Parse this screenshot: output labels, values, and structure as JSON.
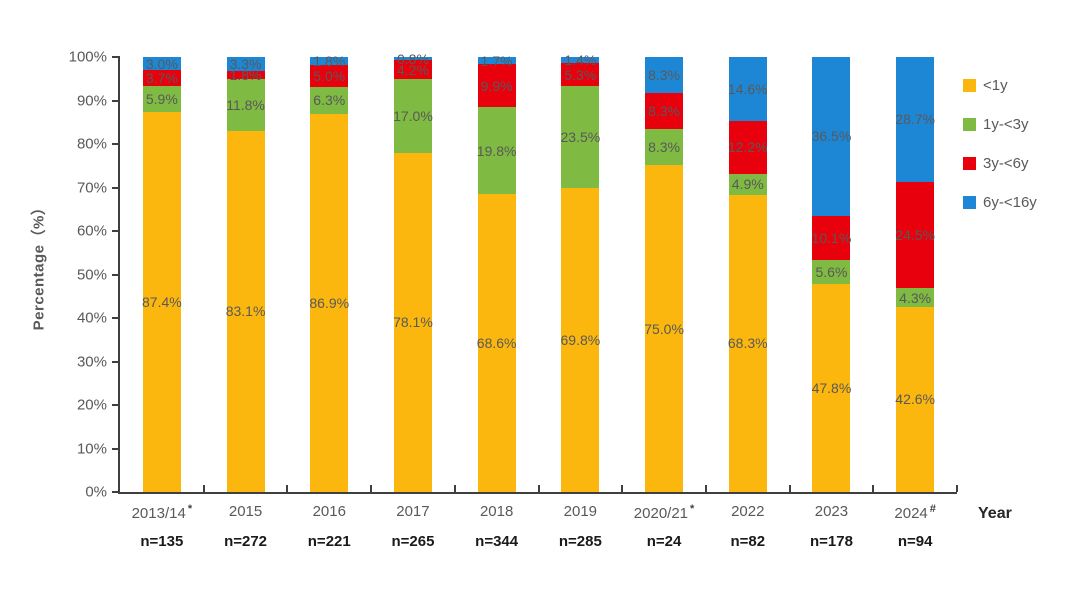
{
  "chart_data": {
    "type": "bar",
    "subtype": "stacked-percentage-column",
    "title": "",
    "xlabel": "Year",
    "ylabel": "Percentage（%）",
    "ylim": [
      0,
      100
    ],
    "grid": false,
    "legend_position": "right",
    "y_ticks": [
      "0%",
      "10%",
      "20%",
      "30%",
      "40%",
      "50%",
      "60%",
      "70%",
      "80%",
      "90%",
      "100%"
    ],
    "categories": [
      {
        "year": "2013/14",
        "marker": "*",
        "n": "n=135"
      },
      {
        "year": "2015",
        "marker": "",
        "n": "n=272"
      },
      {
        "year": "2016",
        "marker": "",
        "n": "n=221"
      },
      {
        "year": "2017",
        "marker": "",
        "n": "n=265"
      },
      {
        "year": "2018",
        "marker": "",
        "n": "n=344"
      },
      {
        "year": "2019",
        "marker": "",
        "n": "n=285"
      },
      {
        "year": "2020/21",
        "marker": "*",
        "n": "n=24"
      },
      {
        "year": "2022",
        "marker": "",
        "n": "n=82"
      },
      {
        "year": "2023",
        "marker": "",
        "n": "n=178"
      },
      {
        "year": "2024",
        "marker": "#",
        "n": "n=94"
      }
    ],
    "series": [
      {
        "name": "<1y",
        "color": "#FBB70D",
        "values": [
          87.4,
          83.1,
          86.9,
          78.1,
          68.6,
          69.8,
          75.0,
          68.3,
          47.8,
          42.6
        ]
      },
      {
        "name": "1y-<3y",
        "color": "#7FBA42",
        "values": [
          5.9,
          11.8,
          6.3,
          17.0,
          19.8,
          23.5,
          8.3,
          4.9,
          5.6,
          4.3
        ]
      },
      {
        "name": "3y-<6y",
        "color": "#E8000D",
        "values": [
          3.7,
          1.8,
          5.0,
          4.2,
          9.9,
          5.3,
          8.3,
          12.2,
          10.1,
          24.5
        ]
      },
      {
        "name": "6y-<16y",
        "color": "#1E87D5",
        "values": [
          3.0,
          3.3,
          1.8,
          0.8,
          1.7,
          1.4,
          8.3,
          14.6,
          36.5,
          28.7
        ]
      }
    ],
    "label_color": "#595959"
  }
}
